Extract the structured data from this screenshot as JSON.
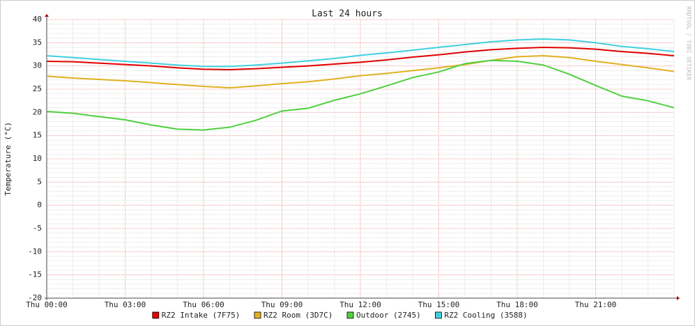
{
  "chart_data": {
    "type": "line",
    "title": "Last 24 hours",
    "y_label": "Temperature (°C)",
    "watermark": "RRDTOOL / TOBI OETIKER",
    "x": [
      0,
      1,
      2,
      3,
      4,
      5,
      6,
      7,
      8,
      9,
      10,
      11,
      12,
      13,
      14,
      15,
      16,
      17,
      18,
      19,
      20,
      21,
      22,
      23,
      24
    ],
    "xlim": [
      0,
      24
    ],
    "xticks": [
      {
        "value": 0,
        "label": "Thu 00:00"
      },
      {
        "value": 3,
        "label": "Thu 03:00"
      },
      {
        "value": 6,
        "label": "Thu 06:00"
      },
      {
        "value": 9,
        "label": "Thu 09:00"
      },
      {
        "value": 12,
        "label": "Thu 12:00"
      },
      {
        "value": 15,
        "label": "Thu 15:00"
      },
      {
        "value": 18,
        "label": "Thu 18:00"
      },
      {
        "value": 21,
        "label": "Thu 21:00"
      }
    ],
    "ylim": [
      -20,
      40
    ],
    "yticks": [
      -20,
      -15,
      -10,
      -5,
      0,
      5,
      10,
      15,
      20,
      25,
      30,
      35,
      40
    ],
    "grid": true,
    "series": [
      {
        "name": "RZ2 Intake (7F75)",
        "color": "#e00000",
        "values": [
          31.0,
          30.9,
          30.6,
          30.3,
          30.0,
          29.6,
          29.3,
          29.2,
          29.4,
          29.7,
          30.0,
          30.4,
          30.8,
          31.3,
          31.9,
          32.4,
          33.0,
          33.5,
          33.8,
          34.0,
          33.9,
          33.6,
          33.1,
          32.7,
          32.2
        ]
      },
      {
        "name": "RZ2 Room (3D7C)",
        "color": "#e0b020",
        "values": [
          27.8,
          27.4,
          27.1,
          26.8,
          26.4,
          26.0,
          25.6,
          25.3,
          25.7,
          26.2,
          26.6,
          27.2,
          27.9,
          28.4,
          29.0,
          29.6,
          30.3,
          31.2,
          32.0,
          32.2,
          31.8,
          31.0,
          30.3,
          29.6,
          28.8
        ]
      },
      {
        "name": "Outdoor (2745)",
        "color": "#50d040",
        "values": [
          20.2,
          19.8,
          19.1,
          18.4,
          17.3,
          16.4,
          16.2,
          16.8,
          18.3,
          20.3,
          20.9,
          22.6,
          24.0,
          25.7,
          27.5,
          28.7,
          30.5,
          31.2,
          31.0,
          30.2,
          28.2,
          25.8,
          23.5,
          22.5,
          21.0
        ]
      },
      {
        "name": "RZ2 Cooling (3588)",
        "color": "#40d0e0",
        "values": [
          32.2,
          31.8,
          31.4,
          31.0,
          30.6,
          30.2,
          29.9,
          29.9,
          30.2,
          30.6,
          31.1,
          31.6,
          32.3,
          32.8,
          33.4,
          34.0,
          34.6,
          35.2,
          35.6,
          35.8,
          35.6,
          35.0,
          34.2,
          33.7,
          33.1
        ]
      }
    ]
  }
}
